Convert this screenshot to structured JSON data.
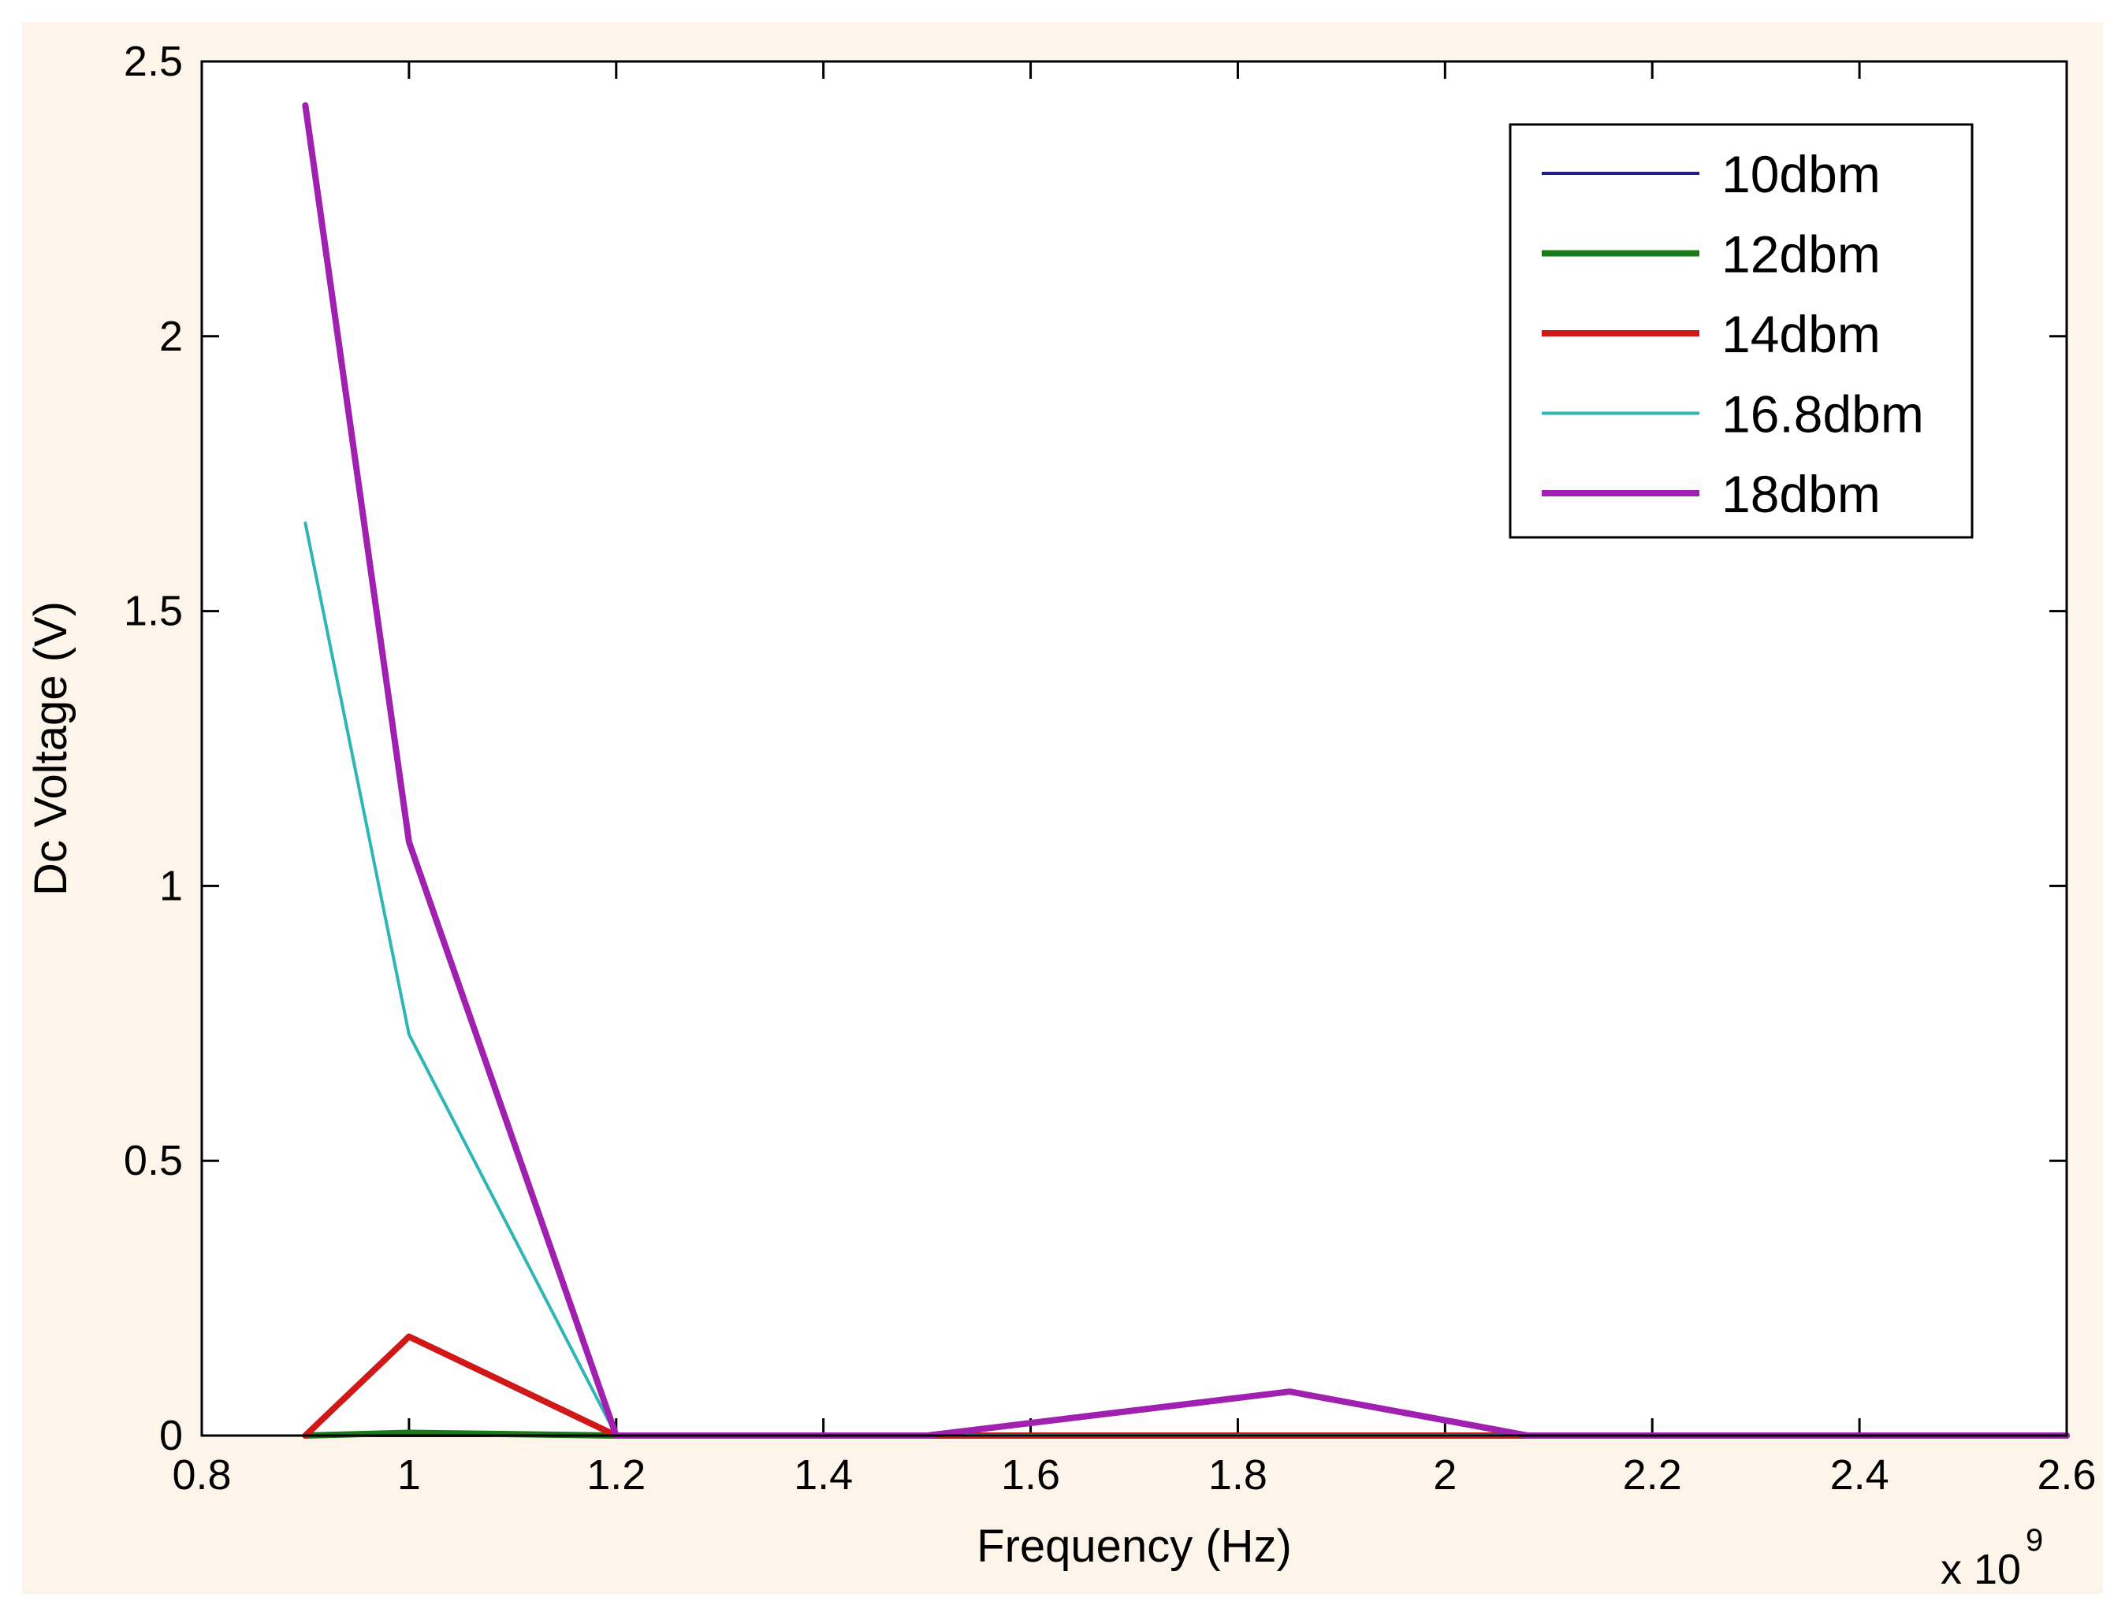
{
  "chart_data": {
    "type": "line",
    "xlabel": "Frequency (Hz)",
    "ylabel": "Dc Voltage (V)",
    "x_exponent_label": {
      "base": "x 10",
      "exp": "9"
    },
    "xlim": [
      0.8,
      2.6
    ],
    "ylim": [
      0,
      2.5
    ],
    "xticks": [
      0.8,
      1,
      1.2,
      1.4,
      1.6,
      1.8,
      2,
      2.2,
      2.4,
      2.6
    ],
    "xtick_labels": [
      "0.8",
      "1",
      "1.2",
      "1.4",
      "1.6",
      "1.8",
      "2",
      "2.2",
      "2.4",
      "2.6"
    ],
    "yticks": [
      0,
      0.5,
      1,
      1.5,
      2,
      2.5
    ],
    "ytick_labels": [
      "0",
      "0.5",
      "1",
      "1.5",
      "2",
      "2.5"
    ],
    "x_scale_note": "x values in units of 10^9 Hz",
    "grid": false,
    "legend_position": "top-right",
    "series": [
      {
        "name": "10dbm",
        "color": "#1f1f8c",
        "width": "thin",
        "x": [
          0.9,
          1.0,
          1.2,
          1.5,
          1.85,
          2.08,
          2.4,
          2.6
        ],
        "y": [
          0,
          0,
          0,
          0,
          0,
          0,
          0,
          0
        ]
      },
      {
        "name": "12dbm",
        "color": "#1a7a1a",
        "width": "thick",
        "x": [
          0.9,
          1.0,
          1.2,
          1.5,
          1.85,
          2.08,
          2.4,
          2.6
        ],
        "y": [
          0,
          0.005,
          0,
          0,
          0,
          0,
          0,
          0
        ]
      },
      {
        "name": "14dbm",
        "color": "#d01818",
        "width": "thick",
        "x": [
          0.9,
          1.0,
          1.2,
          1.5,
          1.85,
          2.08,
          2.4,
          2.6
        ],
        "y": [
          0,
          0.18,
          0,
          0,
          0,
          0,
          0,
          0
        ]
      },
      {
        "name": "16.8dbm",
        "color": "#2fb5b5",
        "width": "thin",
        "x": [
          0.9,
          1.0,
          1.2,
          1.5,
          1.85,
          2.08,
          2.4,
          2.6
        ],
        "y": [
          1.66,
          0.73,
          0,
          0,
          0,
          0,
          0,
          0
        ]
      },
      {
        "name": "18dbm",
        "color": "#a020b0",
        "width": "thick",
        "x": [
          0.9,
          1.0,
          1.2,
          1.5,
          1.85,
          2.08,
          2.4,
          2.6
        ],
        "y": [
          2.42,
          1.08,
          0,
          0,
          0.08,
          0,
          0,
          0
        ]
      }
    ]
  }
}
